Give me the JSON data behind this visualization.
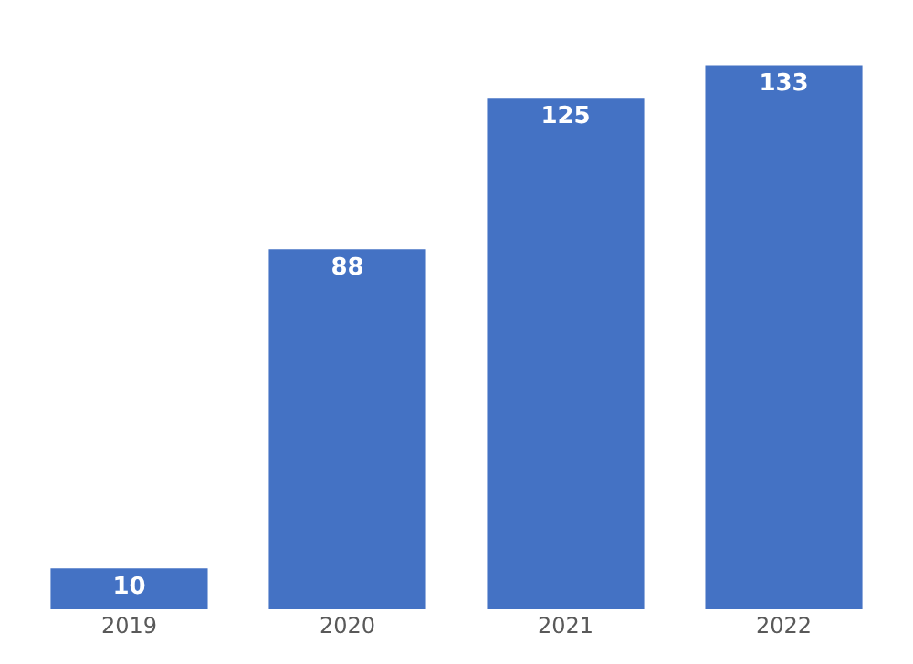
{
  "chart_data": {
    "type": "bar",
    "categories": [
      "2019",
      "2020",
      "2021",
      "2022"
    ],
    "values": [
      10,
      88,
      125,
      133
    ],
    "color": "#4472c4",
    "data_labels": true
  }
}
